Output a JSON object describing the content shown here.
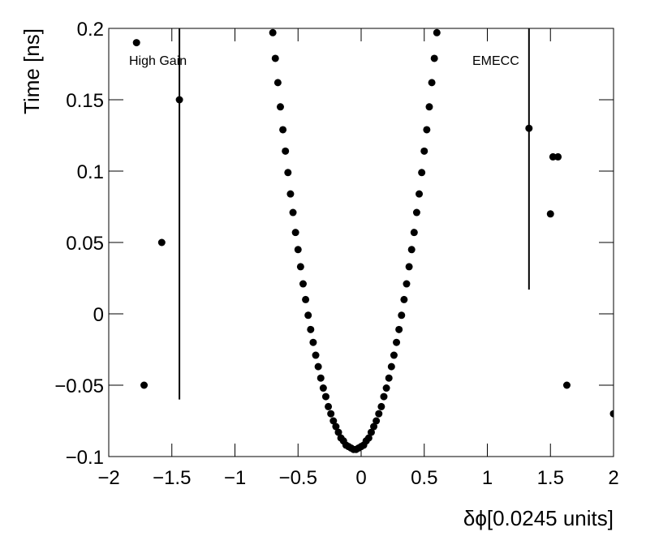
{
  "chart_data": {
    "type": "scatter",
    "xlabel": "δϕ[0.0245 units]",
    "ylabel": "Time [ns]",
    "annotations": [
      "High Gain",
      "EMECC"
    ],
    "xlim": [
      -2,
      2
    ],
    "ylim": [
      -0.1,
      0.2
    ],
    "xticks": [
      {
        "value": -2,
        "label": "−2"
      },
      {
        "value": -1.5,
        "label": "−1.5"
      },
      {
        "value": -1,
        "label": "−1"
      },
      {
        "value": -0.5,
        "label": "−0.5"
      },
      0,
      0.5,
      1,
      1.5,
      2
    ],
    "yticks": [
      {
        "value": -0.1,
        "label": "−0.1"
      },
      {
        "value": -0.05,
        "label": "−0.05"
      },
      0,
      0.05,
      0.1,
      0.15,
      0.2
    ],
    "grid": false,
    "series": [
      {
        "color": "#000000",
        "x": [
          -1.78,
          -1.72,
          -1.58,
          1.5,
          1.52,
          1.56,
          1.63,
          2.0,
          -0.7,
          -0.68,
          -0.66,
          -0.64,
          -0.62,
          -0.6,
          -0.58,
          -0.56,
          -0.54,
          -0.52,
          -0.5,
          -0.48,
          -0.46,
          -0.44,
          -0.42,
          -0.4,
          -0.38,
          -0.36,
          -0.34,
          -0.32,
          -0.3,
          -0.28,
          -0.26,
          -0.24,
          -0.22,
          -0.2,
          -0.18,
          -0.16,
          -0.14,
          -0.12,
          -0.1,
          -0.08,
          -0.06,
          -0.04,
          -0.02,
          0,
          0.02,
          0.04,
          0.06,
          0.08,
          0.1,
          0.12,
          0.14,
          0.16,
          0.18,
          0.2,
          0.22,
          0.24,
          0.26,
          0.28,
          0.3,
          0.32,
          0.34,
          0.36,
          0.38,
          0.4,
          0.42,
          0.44,
          0.46,
          0.48,
          0.5,
          0.52,
          0.54,
          0.56,
          0.58,
          0.6
        ],
        "values": [
          0.19,
          -0.05,
          0.05,
          0.07,
          0.11,
          0.11,
          -0.05,
          -0.07,
          0.197,
          0.179,
          0.162,
          0.145,
          0.129,
          0.114,
          0.099,
          0.084,
          0.071,
          0.057,
          0.045,
          0.033,
          0.021,
          0.01,
          -0.001,
          -0.011,
          -0.02,
          -0.029,
          -0.037,
          -0.045,
          -0.052,
          -0.058,
          -0.065,
          -0.07,
          -0.075,
          -0.079,
          -0.083,
          -0.087,
          -0.089,
          -0.092,
          -0.093,
          -0.094,
          -0.095,
          -0.095,
          -0.094,
          -0.093,
          -0.092,
          -0.089,
          -0.087,
          -0.083,
          -0.079,
          -0.075,
          -0.07,
          -0.065,
          -0.058,
          -0.052,
          -0.045,
          -0.037,
          -0.029,
          -0.02,
          -0.011,
          -0.001,
          0.01,
          0.021,
          0.033,
          0.045,
          0.057,
          0.071,
          0.084,
          0.099,
          0.114,
          0.129,
          0.145,
          0.162,
          0.179,
          0.197
        ]
      },
      {
        "color": "#000000",
        "x": [
          -1.44,
          1.33
        ],
        "values": [
          0.15,
          0.13
        ],
        "errors": [
          0.21,
          0.113
        ]
      }
    ]
  }
}
